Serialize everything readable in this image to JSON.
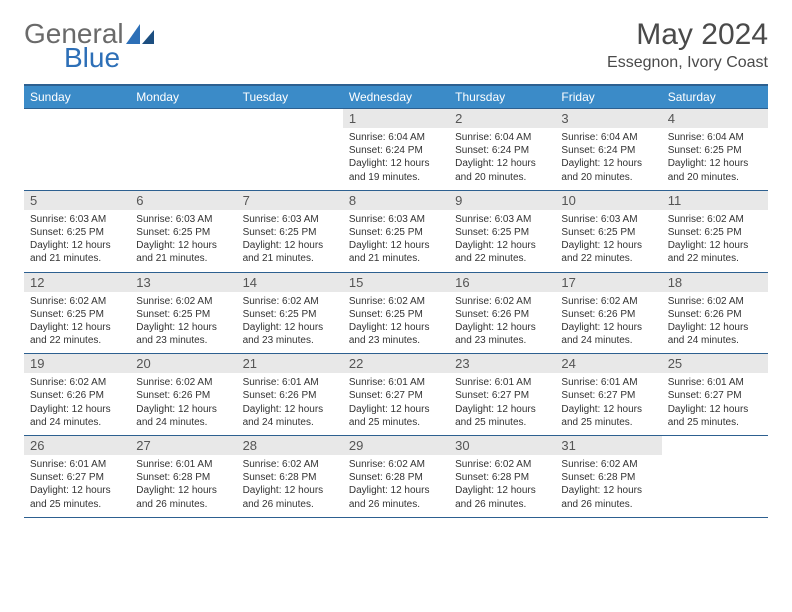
{
  "brand": {
    "part1": "General",
    "part2": "Blue"
  },
  "title": {
    "month": "May 2024",
    "location": "Essegnon, Ivory Coast"
  },
  "colors": {
    "header_bg": "#3b8bc8",
    "header_border": "#2d6090",
    "daynum_bg": "#e8e8e8",
    "text": "#333333",
    "brand_gray": "#6a6a6a",
    "brand_blue": "#2d6fb7"
  },
  "dayNames": [
    "Sunday",
    "Monday",
    "Tuesday",
    "Wednesday",
    "Thursday",
    "Friday",
    "Saturday"
  ],
  "startWeekday": 3,
  "daysInMonth": 31,
  "days": {
    "1": {
      "sunrise": "6:04 AM",
      "sunset": "6:24 PM",
      "daylight": "12 hours and 19 minutes."
    },
    "2": {
      "sunrise": "6:04 AM",
      "sunset": "6:24 PM",
      "daylight": "12 hours and 20 minutes."
    },
    "3": {
      "sunrise": "6:04 AM",
      "sunset": "6:24 PM",
      "daylight": "12 hours and 20 minutes."
    },
    "4": {
      "sunrise": "6:04 AM",
      "sunset": "6:25 PM",
      "daylight": "12 hours and 20 minutes."
    },
    "5": {
      "sunrise": "6:03 AM",
      "sunset": "6:25 PM",
      "daylight": "12 hours and 21 minutes."
    },
    "6": {
      "sunrise": "6:03 AM",
      "sunset": "6:25 PM",
      "daylight": "12 hours and 21 minutes."
    },
    "7": {
      "sunrise": "6:03 AM",
      "sunset": "6:25 PM",
      "daylight": "12 hours and 21 minutes."
    },
    "8": {
      "sunrise": "6:03 AM",
      "sunset": "6:25 PM",
      "daylight": "12 hours and 21 minutes."
    },
    "9": {
      "sunrise": "6:03 AM",
      "sunset": "6:25 PM",
      "daylight": "12 hours and 22 minutes."
    },
    "10": {
      "sunrise": "6:03 AM",
      "sunset": "6:25 PM",
      "daylight": "12 hours and 22 minutes."
    },
    "11": {
      "sunrise": "6:02 AM",
      "sunset": "6:25 PM",
      "daylight": "12 hours and 22 minutes."
    },
    "12": {
      "sunrise": "6:02 AM",
      "sunset": "6:25 PM",
      "daylight": "12 hours and 22 minutes."
    },
    "13": {
      "sunrise": "6:02 AM",
      "sunset": "6:25 PM",
      "daylight": "12 hours and 23 minutes."
    },
    "14": {
      "sunrise": "6:02 AM",
      "sunset": "6:25 PM",
      "daylight": "12 hours and 23 minutes."
    },
    "15": {
      "sunrise": "6:02 AM",
      "sunset": "6:25 PM",
      "daylight": "12 hours and 23 minutes."
    },
    "16": {
      "sunrise": "6:02 AM",
      "sunset": "6:26 PM",
      "daylight": "12 hours and 23 minutes."
    },
    "17": {
      "sunrise": "6:02 AM",
      "sunset": "6:26 PM",
      "daylight": "12 hours and 24 minutes."
    },
    "18": {
      "sunrise": "6:02 AM",
      "sunset": "6:26 PM",
      "daylight": "12 hours and 24 minutes."
    },
    "19": {
      "sunrise": "6:02 AM",
      "sunset": "6:26 PM",
      "daylight": "12 hours and 24 minutes."
    },
    "20": {
      "sunrise": "6:02 AM",
      "sunset": "6:26 PM",
      "daylight": "12 hours and 24 minutes."
    },
    "21": {
      "sunrise": "6:01 AM",
      "sunset": "6:26 PM",
      "daylight": "12 hours and 24 minutes."
    },
    "22": {
      "sunrise": "6:01 AM",
      "sunset": "6:27 PM",
      "daylight": "12 hours and 25 minutes."
    },
    "23": {
      "sunrise": "6:01 AM",
      "sunset": "6:27 PM",
      "daylight": "12 hours and 25 minutes."
    },
    "24": {
      "sunrise": "6:01 AM",
      "sunset": "6:27 PM",
      "daylight": "12 hours and 25 minutes."
    },
    "25": {
      "sunrise": "6:01 AM",
      "sunset": "6:27 PM",
      "daylight": "12 hours and 25 minutes."
    },
    "26": {
      "sunrise": "6:01 AM",
      "sunset": "6:27 PM",
      "daylight": "12 hours and 25 minutes."
    },
    "27": {
      "sunrise": "6:01 AM",
      "sunset": "6:28 PM",
      "daylight": "12 hours and 26 minutes."
    },
    "28": {
      "sunrise": "6:02 AM",
      "sunset": "6:28 PM",
      "daylight": "12 hours and 26 minutes."
    },
    "29": {
      "sunrise": "6:02 AM",
      "sunset": "6:28 PM",
      "daylight": "12 hours and 26 minutes."
    },
    "30": {
      "sunrise": "6:02 AM",
      "sunset": "6:28 PM",
      "daylight": "12 hours and 26 minutes."
    },
    "31": {
      "sunrise": "6:02 AM",
      "sunset": "6:28 PM",
      "daylight": "12 hours and 26 minutes."
    }
  },
  "labels": {
    "sunrise": "Sunrise:",
    "sunset": "Sunset:",
    "daylight": "Daylight:"
  }
}
